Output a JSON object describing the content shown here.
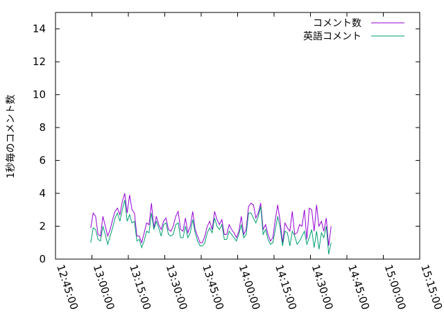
{
  "chart_data": {
    "type": "line",
    "title": "",
    "xlabel": "",
    "ylabel": "1秒毎のコメント数",
    "xlim_minutes": [
      765,
      915
    ],
    "ylim": [
      0,
      15
    ],
    "y_ticks": [
      0,
      2,
      4,
      6,
      8,
      10,
      12,
      14
    ],
    "y_tick_labels": [
      "0",
      "2",
      "4",
      "6",
      "8",
      "10",
      "12",
      "14"
    ],
    "x_ticks_minutes": [
      765,
      780,
      795,
      810,
      825,
      840,
      855,
      870,
      885,
      900,
      915
    ],
    "x_tick_labels": [
      "12:45:00",
      "13:00:00",
      "13:15:00",
      "13:30:00",
      "13:45:00",
      "14:00:00",
      "14:15:00",
      "14:30:00",
      "14:45:00",
      "15:00:00",
      "15:15:00"
    ],
    "grid": false,
    "legend_position": "top-right",
    "x_start_minutes": 779.5,
    "x_step_minutes": 1,
    "series": [
      {
        "name": "コメント数",
        "color": "#9400d3",
        "values": [
          1.9,
          2.8,
          2.6,
          1.5,
          1.4,
          2.6,
          2.0,
          1.4,
          1.8,
          2.4,
          2.9,
          3.1,
          2.7,
          3.5,
          4.0,
          2.8,
          3.9,
          3.0,
          2.8,
          1.4,
          1.4,
          1.0,
          1.6,
          2.2,
          2.1,
          3.4,
          1.9,
          2.6,
          2.1,
          1.8,
          2.3,
          2.5,
          1.8,
          1.7,
          2.0,
          2.6,
          2.9,
          1.8,
          1.7,
          2.5,
          1.6,
          2.0,
          2.9,
          1.8,
          1.4,
          1.0,
          1.0,
          1.4,
          2.0,
          2.3,
          1.8,
          2.9,
          2.4,
          2.1,
          2.4,
          1.5,
          1.5,
          2.1,
          1.8,
          1.6,
          1.3,
          1.7,
          2.6,
          1.5,
          1.8,
          3.2,
          3.4,
          3.3,
          2.5,
          2.8,
          3.4,
          1.8,
          2.1,
          1.5,
          1.1,
          1.3,
          2.4,
          3.3,
          2.3,
          1.0,
          2.2,
          1.9,
          1.7,
          2.9,
          1.5,
          1.6,
          2.1,
          2.0,
          3.0,
          1.2,
          3.1,
          3.0,
          1.7,
          3.3,
          2.0,
          2.3,
          1.7,
          2.5,
          0.8,
          2.0
        ]
      },
      {
        "name": "英語コメント",
        "color": "#009e73",
        "values": [
          1.0,
          1.9,
          1.8,
          1.2,
          1.1,
          2.0,
          1.5,
          0.9,
          1.4,
          1.9,
          2.5,
          2.8,
          2.3,
          3.0,
          3.6,
          2.3,
          2.7,
          2.2,
          2.3,
          1.1,
          1.2,
          0.7,
          1.1,
          1.7,
          1.6,
          2.8,
          1.8,
          2.3,
          1.9,
          1.4,
          2.1,
          2.2,
          1.5,
          1.4,
          1.5,
          2.1,
          2.2,
          1.3,
          1.3,
          2.0,
          1.3,
          1.6,
          2.4,
          1.6,
          1.1,
          0.8,
          0.8,
          1.0,
          1.6,
          1.9,
          1.6,
          2.5,
          2.0,
          1.8,
          2.1,
          1.2,
          1.2,
          1.7,
          1.5,
          1.3,
          1.1,
          1.5,
          2.1,
          1.3,
          1.5,
          2.8,
          2.8,
          2.5,
          2.2,
          2.6,
          3.2,
          1.5,
          1.8,
          1.2,
          0.9,
          1.0,
          1.8,
          2.6,
          1.9,
          0.8,
          1.7,
          1.6,
          0.8,
          1.7,
          1.4,
          0.9,
          1.1,
          1.4,
          1.7,
          0.9,
          1.3,
          1.8,
          0.7,
          1.7,
          0.6,
          1.6,
          1.3,
          2.0,
          0.3,
          1.0
        ]
      }
    ]
  }
}
